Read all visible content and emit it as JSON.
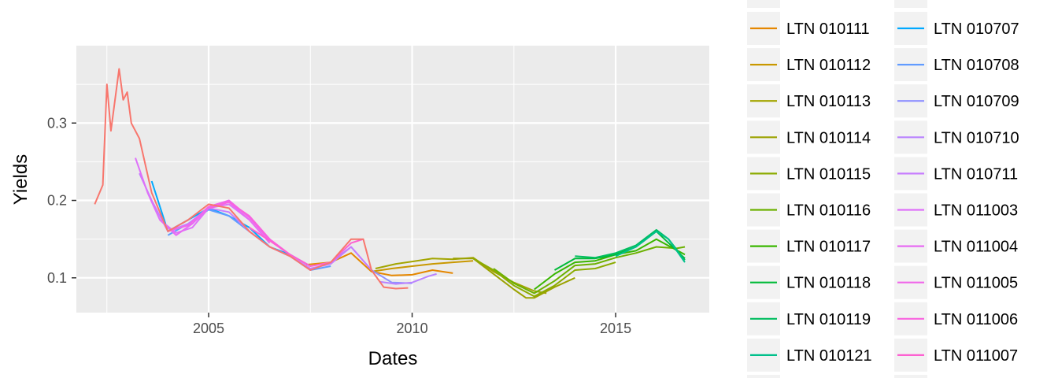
{
  "chart_data": {
    "type": "line",
    "title": "",
    "xlabel": "Dates",
    "ylabel": "Yields",
    "xlim": [
      2001.75,
      2017.3
    ],
    "ylim": [
      0.055,
      0.4
    ],
    "x_ticks": [
      2005,
      2010,
      2015
    ],
    "x_tick_labels": [
      "2005",
      "2010",
      "2015"
    ],
    "y_ticks": [
      0.1,
      0.2,
      0.3
    ],
    "y_tick_labels": [
      "0.1",
      "0.2",
      "0.3"
    ],
    "grid": true,
    "legend_position": "right",
    "legend_columns": 2,
    "series": [
      {
        "name": "LTN 010111",
        "color": "#E58700",
        "x": [
          2007.4,
          2008.0,
          2008.5,
          2009.0,
          2009.5,
          2010.0,
          2010.5,
          2011.0
        ],
        "y": [
          0.117,
          0.12,
          0.132,
          0.108,
          0.103,
          0.104,
          0.11,
          0.106
        ]
      },
      {
        "name": "LTN 010112",
        "color": "#C99800",
        "x": [
          2009.0,
          2009.5,
          2010.0,
          2010.5,
          2011.0,
          2011.5
        ],
        "y": [
          0.108,
          0.112,
          0.115,
          0.118,
          0.12,
          0.122
        ]
      },
      {
        "name": "LTN 010113",
        "color": "#A3A500",
        "x": [
          2009.1,
          2009.6,
          2010.0,
          2010.5,
          2011.0,
          2011.5,
          2012.0,
          2012.5,
          2013.0,
          2013.3
        ],
        "y": [
          0.112,
          0.118,
          0.121,
          0.125,
          0.124,
          0.126,
          0.108,
          0.094,
          0.083,
          0.08
        ]
      },
      {
        "name": "LTN 010114",
        "color": "#9BA200",
        "x": [
          2011.0,
          2011.5,
          2012.0,
          2012.5,
          2012.8,
          2013.0,
          2013.5,
          2014.0
        ],
        "y": [
          0.125,
          0.125,
          0.105,
          0.085,
          0.074,
          0.074,
          0.088,
          0.1
        ]
      },
      {
        "name": "LTN 010115",
        "color": "#8BAB00",
        "x": [
          2011.5,
          2012.0,
          2012.5,
          2013.0,
          2013.5,
          2014.0,
          2014.5,
          2015.0
        ],
        "y": [
          0.125,
          0.11,
          0.09,
          0.076,
          0.09,
          0.11,
          0.112,
          0.12
        ]
      },
      {
        "name": "LTN 010116",
        "color": "#6BB100",
        "x": [
          2012.0,
          2012.5,
          2013.0,
          2013.5,
          2014.0,
          2014.5,
          2015.0,
          2015.5,
          2016.0,
          2016.5,
          2016.7
        ],
        "y": [
          0.112,
          0.093,
          0.08,
          0.096,
          0.116,
          0.118,
          0.126,
          0.132,
          0.14,
          0.138,
          0.14
        ]
      },
      {
        "name": "LTN 010117",
        "color": "#39B600",
        "x": [
          2013.0,
          2013.5,
          2014.0,
          2014.5,
          2015.0,
          2015.5,
          2016.0,
          2016.7
        ],
        "y": [
          0.085,
          0.105,
          0.12,
          0.122,
          0.13,
          0.135,
          0.15,
          0.13
        ]
      },
      {
        "name": "LTN 010118",
        "color": "#00BA38",
        "x": [
          2013.5,
          2014.0,
          2014.5,
          2015.0,
          2015.5,
          2016.0,
          2016.7
        ],
        "y": [
          0.11,
          0.125,
          0.125,
          0.13,
          0.14,
          0.16,
          0.125
        ]
      },
      {
        "name": "LTN 010119",
        "color": "#00BD5F",
        "x": [
          2014.0,
          2014.5,
          2015.0,
          2015.5,
          2016.0,
          2016.3,
          2016.7
        ],
        "y": [
          0.128,
          0.126,
          0.132,
          0.142,
          0.162,
          0.15,
          0.123
        ]
      },
      {
        "name": "LTN 010121",
        "color": "#00C08B",
        "x": [
          2015.0,
          2015.5,
          2016.0,
          2016.3,
          2016.7
        ],
        "y": [
          0.128,
          0.14,
          0.16,
          0.15,
          0.12
        ]
      },
      {
        "name": "LTN 010707",
        "color": "#00A9FF",
        "x": [
          2003.6,
          2004.0,
          2004.5,
          2005.0,
          2005.5,
          2006.0,
          2006.5,
          2007.0,
          2007.5
        ],
        "y": [
          0.225,
          0.16,
          0.175,
          0.19,
          0.18,
          0.165,
          0.14,
          0.13,
          0.115
        ]
      },
      {
        "name": "LTN 010708",
        "color": "#619CFF",
        "x": [
          2004.0,
          2004.5,
          2005.0,
          2005.5,
          2006.0,
          2006.5,
          2007.0,
          2007.5,
          2008.0
        ],
        "y": [
          0.155,
          0.17,
          0.188,
          0.18,
          0.16,
          0.14,
          0.128,
          0.11,
          0.115
        ]
      },
      {
        "name": "LTN 010709",
        "color": "#8F91FF",
        "x": [
          2007.5,
          2008.0,
          2008.5,
          2009.0,
          2009.5,
          2010.0
        ],
        "y": [
          0.11,
          0.12,
          0.14,
          0.11,
          0.094,
          0.093
        ]
      },
      {
        "name": "LTN 010710",
        "color": "#B983FF",
        "x": [
          2009.2,
          2009.6,
          2010.0,
          2010.4,
          2010.6
        ],
        "y": [
          0.095,
          0.092,
          0.094,
          0.102,
          0.105
        ]
      },
      {
        "name": "LTN 010711",
        "color": "#C77CFF",
        "x": [
          2003.3,
          2003.6,
          2004.0,
          2004.5,
          2005.0,
          2005.5,
          2006.0,
          2006.5,
          2007.0,
          2007.5,
          2008.0,
          2008.5,
          2009.0
        ],
        "y": [
          0.235,
          0.2,
          0.16,
          0.17,
          0.19,
          0.185,
          0.16,
          0.14,
          0.128,
          0.112,
          0.118,
          0.14,
          0.11
        ]
      },
      {
        "name": "LTN 011003",
        "color": "#DE71F9",
        "x": [
          2003.2,
          2003.5,
          2003.8,
          2004.2,
          2004.6,
          2005.0,
          2005.5,
          2006.0
        ],
        "y": [
          0.255,
          0.21,
          0.175,
          0.158,
          0.165,
          0.19,
          0.195,
          0.175
        ]
      },
      {
        "name": "LTN 011004",
        "color": "#E76BF3",
        "x": [
          2003.8,
          2004.2,
          2004.6,
          2005.0,
          2005.5,
          2006.0,
          2006.5
        ],
        "y": [
          0.175,
          0.155,
          0.17,
          0.19,
          0.198,
          0.175,
          0.145
        ]
      },
      {
        "name": "LTN 011005",
        "color": "#F066EA",
        "x": [
          2004.0,
          2004.5,
          2005.0,
          2005.5,
          2006.0,
          2006.5,
          2007.0
        ],
        "y": [
          0.16,
          0.168,
          0.192,
          0.2,
          0.178,
          0.148,
          0.13
        ]
      },
      {
        "name": "LTN 011006",
        "color": "#F863DF",
        "x": [
          2005.0,
          2005.5,
          2006.0,
          2006.5,
          2007.0,
          2007.5
        ],
        "y": [
          0.19,
          0.198,
          0.18,
          0.15,
          0.13,
          0.115
        ]
      },
      {
        "name": "LTN 011007",
        "color": "#FD61D1",
        "x": [
          2006.0,
          2006.5,
          2007.0,
          2007.5,
          2008.0,
          2008.5,
          2008.8
        ],
        "y": [
          0.165,
          0.148,
          0.13,
          0.115,
          0.12,
          0.145,
          0.15
        ]
      },
      {
        "name": "",
        "color": "#F8766D",
        "x": [
          2002.2,
          2002.4,
          2002.5,
          2002.6,
          2002.8,
          2002.9,
          2003.0,
          2003.1,
          2003.3,
          2003.6,
          2004.0,
          2004.5,
          2005.0,
          2005.5,
          2006.0,
          2006.5,
          2007.0,
          2007.5,
          2008.0,
          2008.5,
          2008.8,
          2009.0,
          2009.3,
          2009.6,
          2009.9
        ],
        "y": [
          0.195,
          0.22,
          0.35,
          0.29,
          0.37,
          0.33,
          0.34,
          0.3,
          0.28,
          0.21,
          0.16,
          0.175,
          0.195,
          0.19,
          0.16,
          0.14,
          0.128,
          0.11,
          0.12,
          0.15,
          0.15,
          0.11,
          0.088,
          0.086,
          0.087
        ]
      }
    ]
  }
}
